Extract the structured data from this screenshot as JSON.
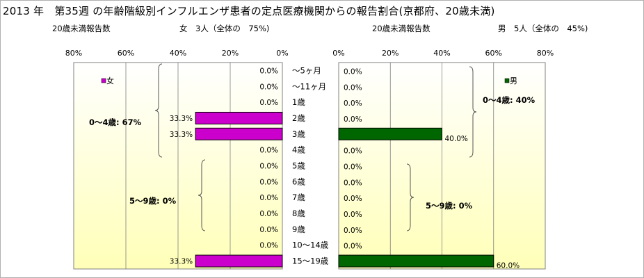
{
  "title": "2013 年　第35週 の年齢階級別インフルエンザ患者の定点医療機関からの報告割合(京都府、20歳未満)",
  "female_header": {
    "under20_label": "20歳未満報告数",
    "summary": "女　3人（全体の　75%)"
  },
  "male_header": {
    "under20_label": "20歳未満報告数",
    "summary": "男　5人（全体の　45%)"
  },
  "colors": {
    "female": "#cc00cc",
    "male": "#006600",
    "plot_bg_top": "#ffffff",
    "plot_bg_bottom": "#ffffb8"
  },
  "chart_data": [
    {
      "type": "bar",
      "orientation": "horizontal-reversed",
      "categories": [
        "～5ヶ月",
        "～11ヶ月",
        "1歳",
        "2歳",
        "3歳",
        "4歳",
        "5歳",
        "6歳",
        "7歳",
        "8歳",
        "9歳",
        "10～14歳",
        "15～19歳"
      ],
      "series": [
        {
          "name": "女",
          "values": [
            0,
            0,
            0,
            33.3,
            33.3,
            0,
            0,
            0,
            0,
            0,
            0,
            0,
            33.3
          ]
        }
      ],
      "value_labels": [
        "0.0%",
        "0.0%",
        "0.0%",
        "33.3%",
        "33.3%",
        "0.0%",
        "0.0%",
        "0.0%",
        "0.0%",
        "0.0%",
        "0.0%",
        "0.0%",
        "33.3%"
      ],
      "xlim": [
        0,
        80
      ],
      "ticks": [
        "80%",
        "60%",
        "40%",
        "20%",
        "0%"
      ],
      "legend": {
        "label": "女",
        "position": "top-left"
      },
      "annotations": [
        "0～4歳: 67%",
        "5～9歳:  0%"
      ]
    },
    {
      "type": "bar",
      "orientation": "horizontal",
      "categories": [
        "～5ヶ月",
        "～11ヶ月",
        "1歳",
        "2歳",
        "3歳",
        "4歳",
        "5歳",
        "6歳",
        "7歳",
        "8歳",
        "9歳",
        "10～14歳",
        "15～19歳"
      ],
      "series": [
        {
          "name": "男",
          "values": [
            0,
            0,
            0,
            0,
            40,
            0,
            0,
            0,
            0,
            0,
            0,
            0,
            60
          ]
        }
      ],
      "value_labels": [
        "0.0%",
        "0.0%",
        "0.0%",
        "0.0%",
        "40.0%",
        "0.0%",
        "0.0%",
        "0.0%",
        "0.0%",
        "0.0%",
        "0.0%",
        "0.0%",
        "60.0%"
      ],
      "xlim": [
        0,
        80
      ],
      "ticks": [
        "0%",
        "20%",
        "40%",
        "60%",
        "80%"
      ],
      "legend": {
        "label": "男",
        "position": "top-right"
      },
      "annotations": [
        "0～4歳: 40%",
        "5～9歳:  0%"
      ]
    }
  ]
}
